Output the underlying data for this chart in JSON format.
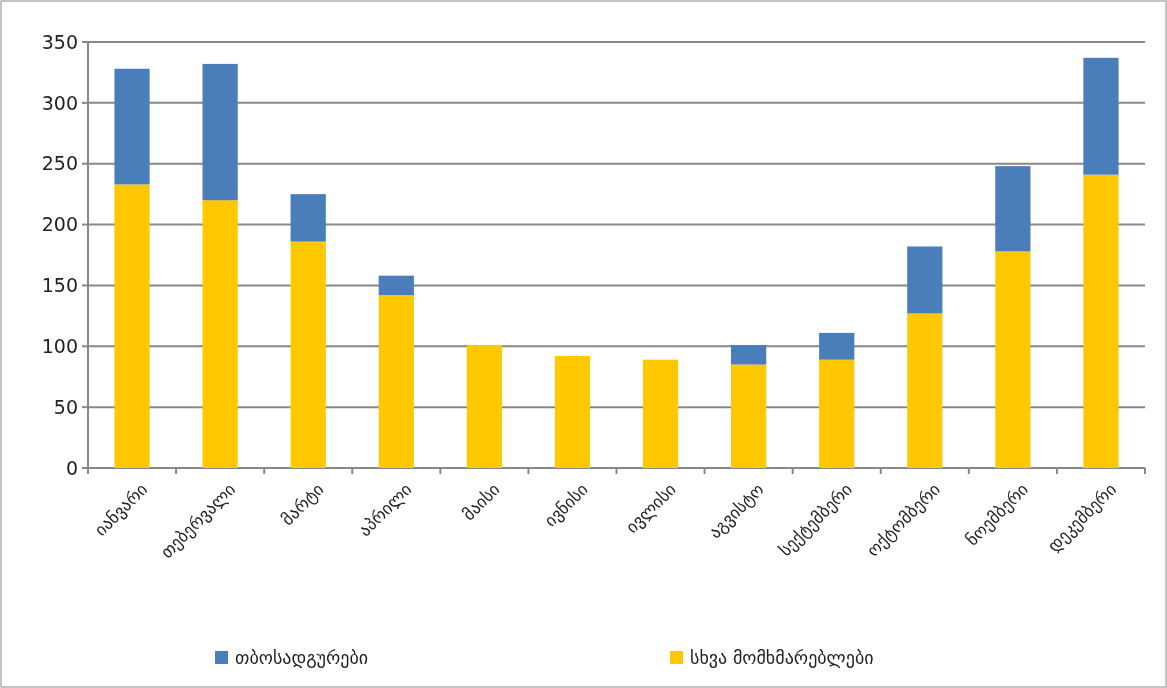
{
  "chart_data": {
    "type": "bar",
    "stacked": true,
    "categories": [
      "იანვარი",
      "თებერვალი",
      "მარტი",
      "აპრილი",
      "მაისი",
      "ივნისი",
      "ივლისი",
      "აგვისტო",
      "სექტემბერი",
      "ოქტომბერი",
      "ნოემბერი",
      "დეკემბერი"
    ],
    "series": [
      {
        "name": "სხვა მომხმარებლები",
        "color": "#ffc800",
        "values": [
          233,
          220,
          186,
          142,
          101,
          92,
          89,
          85,
          89,
          127,
          178,
          241
        ]
      },
      {
        "name": "თბოსადგურები",
        "color": "#4a7ebb",
        "values": [
          95,
          112,
          39,
          16,
          0,
          0,
          0,
          16,
          22,
          55,
          70,
          96
        ]
      }
    ],
    "ylim": [
      0,
      350
    ],
    "yticks": [
      0,
      50,
      100,
      150,
      200,
      250,
      300,
      350
    ],
    "grid": "y",
    "legend": "bottom"
  }
}
